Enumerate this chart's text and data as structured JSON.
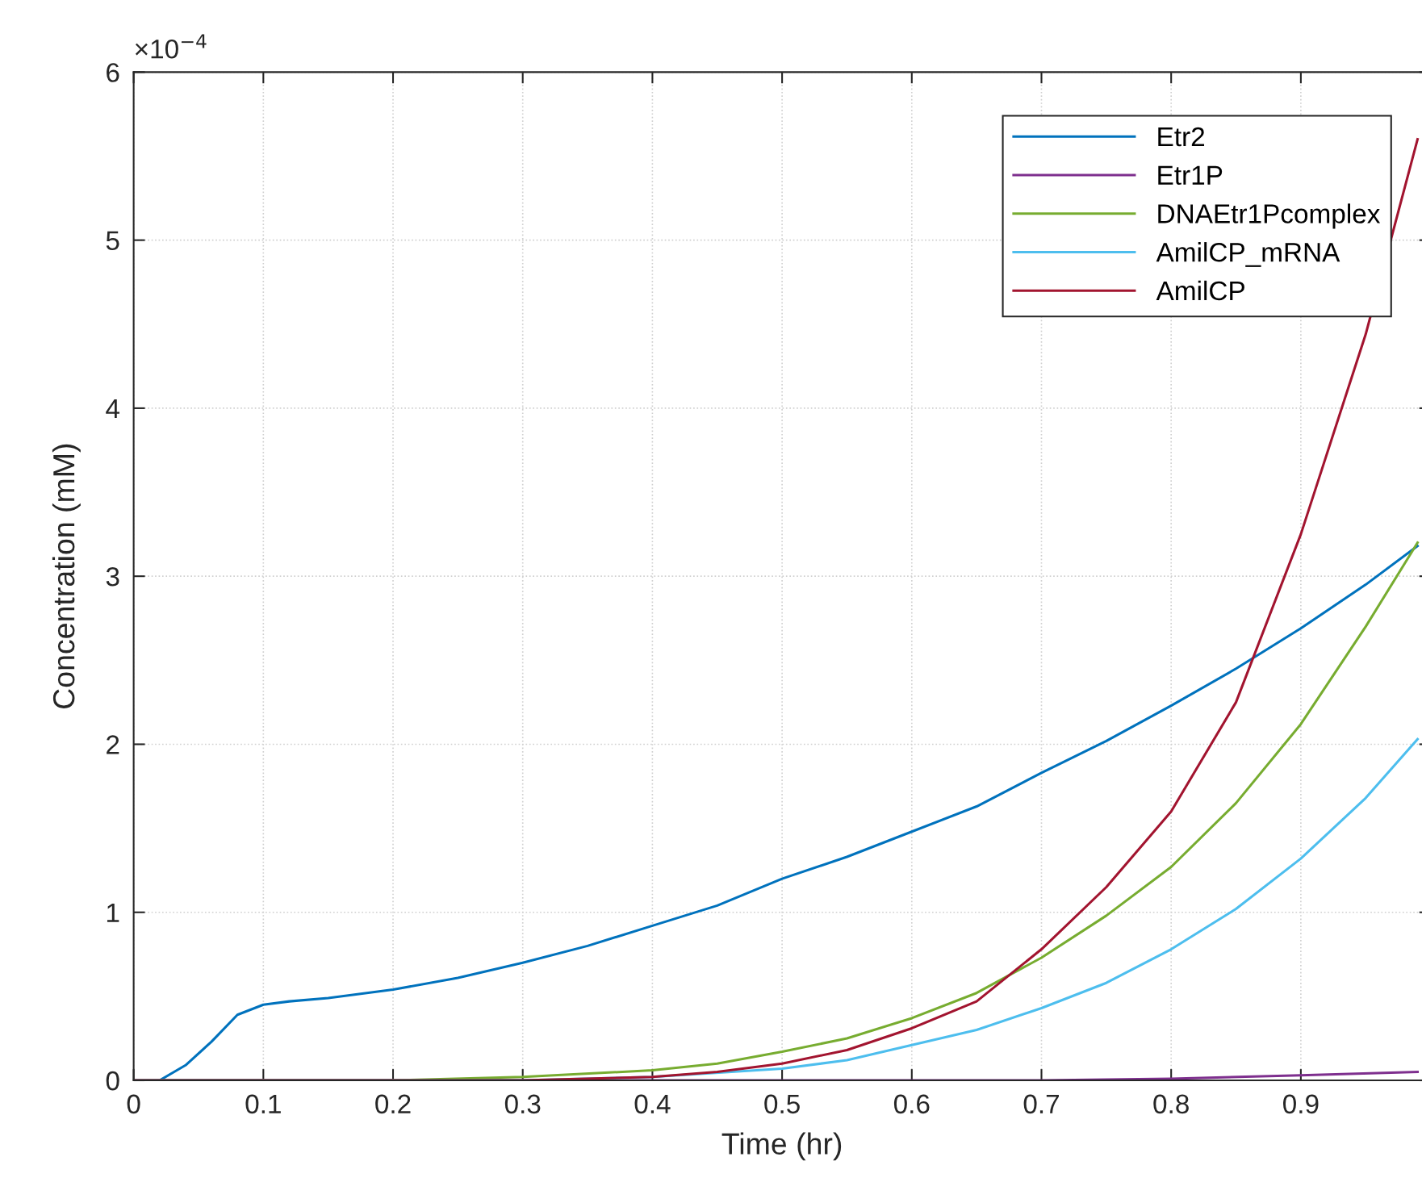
{
  "chart_data": {
    "type": "line",
    "xlabel": "Time (hr)",
    "ylabel": "Concentration (mM)",
    "annotations": [
      "×10$^{−4}$"
    ],
    "xlim": [
      0,
      1
    ],
    "ylim": [
      0,
      6
    ],
    "xticks": [
      0,
      0.1,
      0.2,
      0.3,
      0.4,
      0.5,
      0.6,
      0.7,
      0.8,
      0.9,
      {
        "value": 1,
        "label": null
      }
    ],
    "yticks": [
      0,
      1,
      2,
      3,
      4,
      5,
      6
    ],
    "grid": true,
    "legend": "top right",
    "line_style": "solid",
    "marker": "none",
    "series": [
      {
        "name": "Etr2",
        "color": "#0072bd",
        "x": [
          0,
          0.02,
          0.04,
          0.06,
          0.08,
          0.1,
          0.12,
          0.15,
          0.2,
          0.25,
          0.3,
          0.35,
          0.4,
          0.45,
          0.5,
          0.55,
          0.6,
          0.65,
          0.7,
          0.75,
          0.8,
          0.85,
          0.9,
          0.95,
          0.99
        ],
        "values": [
          0,
          0,
          0.09,
          0.23,
          0.39,
          0.45,
          0.47,
          0.49,
          0.54,
          0.61,
          0.7,
          0.8,
          0.92,
          1.04,
          1.2,
          1.33,
          1.48,
          1.63,
          1.83,
          2.02,
          2.23,
          2.45,
          2.69,
          2.95,
          3.18
        ]
      },
      {
        "name": "Etr1P",
        "color": "#7e2f8e",
        "x": [
          0,
          0.5,
          0.7,
          0.8,
          0.9,
          0.99
        ],
        "values": [
          0,
          0,
          0,
          0.01,
          0.03,
          0.05
        ]
      },
      {
        "name": "DNAEtr1Pcomplex",
        "color": "#77ac30",
        "x": [
          0,
          0.2,
          0.3,
          0.4,
          0.45,
          0.5,
          0.55,
          0.6,
          0.65,
          0.7,
          0.75,
          0.8,
          0.85,
          0.9,
          0.95,
          0.99
        ],
        "values": [
          0,
          0,
          0.02,
          0.06,
          0.1,
          0.17,
          0.25,
          0.37,
          0.52,
          0.73,
          0.98,
          1.27,
          1.65,
          2.12,
          2.7,
          3.2
        ]
      },
      {
        "name": "AmilCP_mRNA",
        "color": "#4dbeee",
        "x": [
          0,
          0.3,
          0.4,
          0.5,
          0.55,
          0.6,
          0.65,
          0.7,
          0.75,
          0.8,
          0.85,
          0.9,
          0.95,
          0.99
        ],
        "values": [
          0,
          0,
          0.02,
          0.07,
          0.12,
          0.21,
          0.3,
          0.43,
          0.58,
          0.78,
          1.02,
          1.32,
          1.68,
          2.03
        ]
      },
      {
        "name": "AmilCP",
        "color": "#a2142f",
        "x": [
          0,
          0.3,
          0.4,
          0.45,
          0.5,
          0.55,
          0.6,
          0.65,
          0.7,
          0.75,
          0.8,
          0.85,
          0.9,
          0.95,
          0.99
        ],
        "values": [
          0,
          0,
          0.02,
          0.05,
          0.1,
          0.18,
          0.31,
          0.47,
          0.78,
          1.15,
          1.6,
          2.25,
          3.25,
          4.44,
          5.6
        ]
      }
    ]
  }
}
